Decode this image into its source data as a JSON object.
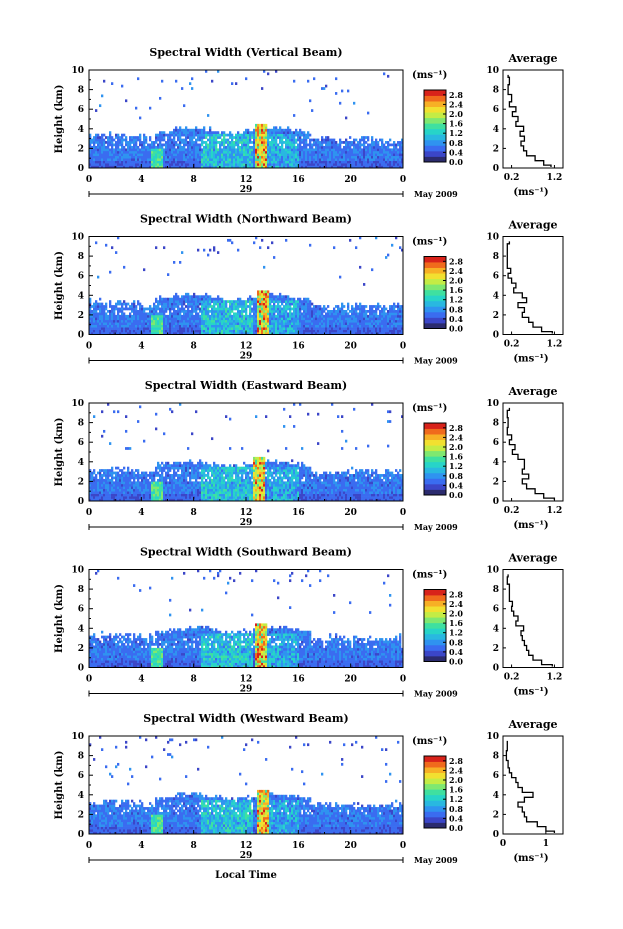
{
  "figure": {
    "xlabel": "Local Time",
    "ylabel": "Height (km)",
    "date_day": "29",
    "date_month": "May 2009",
    "unit": "(ms⁻¹)",
    "avg_title": "Average",
    "avg_xlabel": "(ms⁻¹)"
  },
  "colors": {
    "scale": [
      "#2b2b6e",
      "#3b46c8",
      "#3a6cf0",
      "#2f93f0",
      "#29b8e0",
      "#27d4c8",
      "#3fe0a0",
      "#7fe870",
      "#c4ec45",
      "#f2e030",
      "#f7b025",
      "#f06a1c",
      "#d8221a"
    ]
  },
  "chart_data": [
    {
      "type": "heatmap",
      "title": "Spectral Width (Vertical Beam)",
      "x_ticks": [
        "0",
        "4",
        "8",
        "12",
        "16",
        "20",
        "0"
      ],
      "y_ticks": [
        "0",
        "2",
        "4",
        "6",
        "8",
        "10"
      ],
      "xlim": [
        0,
        24
      ],
      "ylim": [
        0,
        10
      ],
      "colorbar_ticks": [
        "0.0",
        "0.4",
        "0.8",
        "1.2",
        "1.6",
        "2.0",
        "2.4",
        "2.8"
      ],
      "colorbar_range": [
        0,
        3.0
      ],
      "spike": [
        12.7,
        13.6
      ],
      "avg": {
        "x_ticks": [
          "0.2",
          "1.2"
        ],
        "xlim": [
          0,
          1.4
        ],
        "heights": [
          0.1,
          0.5,
          1,
          1.5,
          2,
          2.5,
          3,
          3.5,
          4,
          4.5,
          5,
          5.5,
          6,
          6.5,
          7,
          8,
          9,
          9.5
        ],
        "values": [
          1.12,
          0.95,
          0.75,
          0.55,
          0.48,
          0.42,
          0.5,
          0.4,
          0.48,
          0.3,
          0.35,
          0.22,
          0.3,
          0.15,
          0.2,
          0.12,
          0.15,
          0.12
        ]
      }
    },
    {
      "type": "heatmap",
      "title": "Spectral Width (Northward Beam)",
      "x_ticks": [
        "0",
        "4",
        "8",
        "12",
        "16",
        "20",
        "0"
      ],
      "y_ticks": [
        "0",
        "2",
        "4",
        "6",
        "8",
        "10"
      ],
      "xlim": [
        0,
        24
      ],
      "ylim": [
        0,
        10
      ],
      "colorbar_ticks": [
        "0.0",
        "0.4",
        "0.8",
        "1.2",
        "1.6",
        "2.0",
        "2.4",
        "2.8"
      ],
      "colorbar_range": [
        0,
        3.0
      ],
      "spike": [
        12.8,
        13.7
      ],
      "avg": {
        "x_ticks": [
          "0.2",
          "1.2"
        ],
        "xlim": [
          0,
          1.4
        ],
        "heights": [
          0.1,
          0.5,
          1,
          1.5,
          2,
          2.5,
          3,
          3.5,
          4,
          4.5,
          5,
          5.5,
          6,
          6.5,
          7,
          8,
          9,
          9.5
        ],
        "values": [
          1.15,
          0.9,
          0.7,
          0.6,
          0.45,
          0.5,
          0.35,
          0.55,
          0.45,
          0.25,
          0.3,
          0.2,
          0.12,
          0.18,
          0.1,
          0.1,
          0.1,
          0.15
        ]
      }
    },
    {
      "type": "heatmap",
      "title": "Spectral Width (Eastward Beam)",
      "x_ticks": [
        "0",
        "4",
        "8",
        "12",
        "16",
        "20",
        "0"
      ],
      "y_ticks": [
        "0",
        "2",
        "4",
        "6",
        "8",
        "10"
      ],
      "xlim": [
        0,
        24
      ],
      "ylim": [
        0,
        10
      ],
      "colorbar_ticks": [
        "0.0",
        "0.4",
        "0.8",
        "1.2",
        "1.6",
        "2.0",
        "2.4",
        "2.8"
      ],
      "colorbar_range": [
        0,
        3.0
      ],
      "spike": [
        12.6,
        13.5
      ],
      "avg": {
        "x_ticks": [
          "0.2",
          "1.2"
        ],
        "xlim": [
          0,
          1.4
        ],
        "heights": [
          0.1,
          0.5,
          1,
          1.5,
          2,
          2.5,
          3,
          3.5,
          4,
          4.5,
          5,
          5.5,
          6,
          6.5,
          7,
          8,
          9,
          9.5
        ],
        "values": [
          1.2,
          0.95,
          0.75,
          0.55,
          0.45,
          0.6,
          0.45,
          0.5,
          0.5,
          0.35,
          0.22,
          0.28,
          0.15,
          0.2,
          0.1,
          0.12,
          0.1,
          0.15
        ]
      }
    },
    {
      "type": "heatmap",
      "title": "Spectral Width (Southward Beam)",
      "x_ticks": [
        "0",
        "4",
        "8",
        "12",
        "16",
        "20",
        "0"
      ],
      "y_ticks": [
        "0",
        "2",
        "4",
        "6",
        "8",
        "10"
      ],
      "xlim": [
        0,
        24
      ],
      "ylim": [
        0,
        10
      ],
      "colorbar_ticks": [
        "0.0",
        "0.4",
        "0.8",
        "1.2",
        "1.6",
        "2.0",
        "2.4",
        "2.8"
      ],
      "colorbar_range": [
        0,
        3.0
      ],
      "spike": [
        12.7,
        13.6
      ],
      "avg": {
        "x_ticks": [
          "0.2",
          "1.2"
        ],
        "xlim": [
          0,
          1.4
        ],
        "heights": [
          0.1,
          0.5,
          1,
          1.5,
          2,
          2.5,
          3,
          3.5,
          4,
          4.5,
          5,
          5.5,
          6,
          6.5,
          7,
          8,
          9,
          9.5
        ],
        "values": [
          1.15,
          0.9,
          0.7,
          0.6,
          0.55,
          0.5,
          0.45,
          0.42,
          0.48,
          0.3,
          0.35,
          0.25,
          0.2,
          0.22,
          0.15,
          0.15,
          0.1,
          0.12
        ]
      }
    },
    {
      "type": "heatmap",
      "title": "Spectral Width (Westward Beam)",
      "x_ticks": [
        "0",
        "4",
        "8",
        "12",
        "16",
        "20",
        "0"
      ],
      "y_ticks": [
        "0",
        "2",
        "4",
        "6",
        "8",
        "10"
      ],
      "xlim": [
        0,
        24
      ],
      "ylim": [
        0,
        10
      ],
      "colorbar_ticks": [
        "0.0",
        "0.4",
        "0.8",
        "1.2",
        "1.6",
        "2.0",
        "2.4",
        "2.8"
      ],
      "colorbar_range": [
        0,
        3.0
      ],
      "spike": [
        12.8,
        13.7
      ],
      "avg": {
        "x_ticks": [
          "0",
          "1"
        ],
        "xlim": [
          0,
          1.4
        ],
        "heights": [
          0.1,
          0.5,
          1,
          1.5,
          2,
          2.5,
          3,
          3.5,
          4,
          4.5,
          5,
          5.5,
          6,
          6.5,
          7,
          8,
          9,
          9.5
        ],
        "values": [
          1.2,
          1.0,
          0.8,
          0.55,
          0.5,
          0.45,
          0.35,
          0.5,
          0.7,
          0.45,
          0.35,
          0.3,
          0.2,
          0.15,
          0.12,
          0.08,
          0.1,
          0.1
        ]
      }
    }
  ]
}
